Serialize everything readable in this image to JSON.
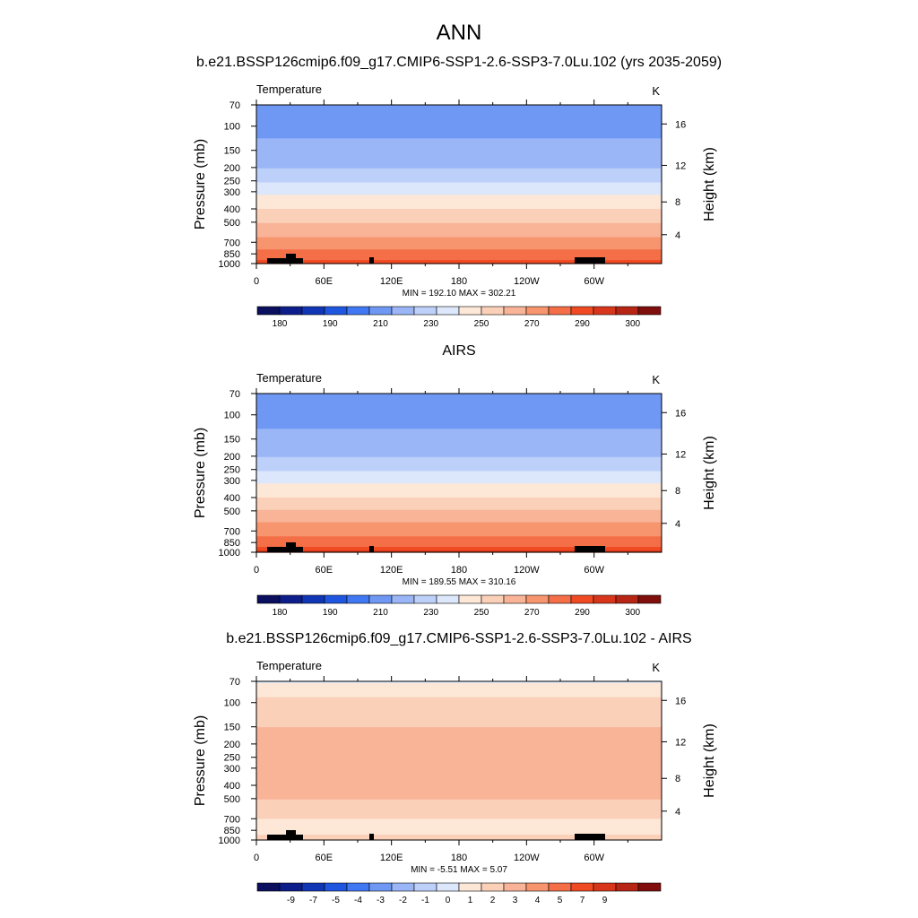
{
  "figure": {
    "title": "ANN",
    "colors": {
      "absolute": [
        "#0a0f5e",
        "#0d1e8a",
        "#1136b5",
        "#1f56e0",
        "#3f78f2",
        "#6f98f4",
        "#9ab6f7",
        "#bdd0f9",
        "#dde7fb",
        "#fde7d7",
        "#fbd0b8",
        "#f9b498",
        "#f7956f",
        "#f46e47",
        "#f04a22",
        "#d8361a",
        "#b72515",
        "#7f0e0c"
      ],
      "difference": [
        "#0a0f5e",
        "#0d1e8a",
        "#1136b5",
        "#1f56e0",
        "#3f78f2",
        "#6f98f4",
        "#9ab6f7",
        "#bdd0f9",
        "#dde7fb",
        "#fde7d7",
        "#fbd0b8",
        "#f9b498",
        "#f7956f",
        "#f46e47",
        "#f04a22",
        "#d8361a",
        "#b72515",
        "#7f0e0c"
      ],
      "land": "#000000"
    }
  },
  "chart_data": [
    {
      "type": "heatmap",
      "title": "b.e21.BSSP126cmip6.f09_g17.CMIP6-SSP1-2.6-SSP3-7.0Lu.102 (yrs 2035-2059)",
      "variable": "Temperature",
      "units": "K",
      "xlabel": "",
      "ylabel": "Pressure (mb)",
      "y2label": "Height (km)",
      "x_ticks": [
        "0",
        "60E",
        "120E",
        "180",
        "120W",
        "60W"
      ],
      "y_ticks": [
        "70",
        "100",
        "150",
        "200",
        "250",
        "300",
        "400",
        "500",
        "700",
        "850",
        "1000"
      ],
      "y2_ticks": [
        "16",
        "12",
        "8",
        "4"
      ],
      "minmax": "MIN = 192.10  MAX = 302.21",
      "colorbar_labels": [
        "180",
        "190",
        "210",
        "230",
        "250",
        "270",
        "290",
        "300"
      ],
      "colorbar_levels": [
        175,
        180,
        185,
        190,
        200,
        210,
        220,
        230,
        240,
        250,
        260,
        270,
        280,
        290,
        295,
        300,
        305
      ],
      "profile": [
        [
          70,
          205
        ],
        [
          100,
          208
        ],
        [
          150,
          212
        ],
        [
          200,
          220
        ],
        [
          250,
          228
        ],
        [
          300,
          238
        ],
        [
          400,
          250
        ],
        [
          500,
          260
        ],
        [
          700,
          274
        ],
        [
          850,
          284
        ],
        [
          1000,
          293
        ]
      ],
      "min": 192.1,
      "max": 302.21
    },
    {
      "type": "heatmap",
      "title": "AIRS",
      "variable": "Temperature",
      "units": "K",
      "xlabel": "",
      "ylabel": "Pressure (mb)",
      "y2label": "Height (km)",
      "x_ticks": [
        "0",
        "60E",
        "120E",
        "180",
        "120W",
        "60W"
      ],
      "y_ticks": [
        "70",
        "100",
        "150",
        "200",
        "250",
        "300",
        "400",
        "500",
        "700",
        "850",
        "1000"
      ],
      "y2_ticks": [
        "16",
        "12",
        "8",
        "4"
      ],
      "minmax": "MIN = 189.55  MAX = 310.16",
      "colorbar_labels": [
        "180",
        "190",
        "210",
        "230",
        "250",
        "270",
        "290",
        "300"
      ],
      "colorbar_levels": [
        175,
        180,
        185,
        190,
        200,
        210,
        220,
        230,
        240,
        250,
        260,
        270,
        280,
        290,
        295,
        300,
        305
      ],
      "profile": [
        [
          70,
          205
        ],
        [
          100,
          207
        ],
        [
          150,
          212
        ],
        [
          200,
          220
        ],
        [
          250,
          228
        ],
        [
          300,
          238
        ],
        [
          400,
          250
        ],
        [
          500,
          261
        ],
        [
          700,
          276
        ],
        [
          850,
          286
        ],
        [
          1000,
          296
        ]
      ],
      "min": 189.55,
      "max": 310.16
    },
    {
      "type": "heatmap",
      "title": "b.e21.BSSP126cmip6.f09_g17.CMIP6-SSP1-2.6-SSP3-7.0Lu.102 - AIRS",
      "variable": "Temperature",
      "units": "K",
      "xlabel": "",
      "ylabel": "Pressure (mb)",
      "y2label": "Height (km)",
      "x_ticks": [
        "0",
        "60E",
        "120E",
        "180",
        "120W",
        "60W"
      ],
      "y_ticks": [
        "70",
        "100",
        "150",
        "200",
        "250",
        "300",
        "400",
        "500",
        "700",
        "850",
        "1000"
      ],
      "y2_ticks": [
        "16",
        "12",
        "8",
        "4"
      ],
      "minmax": "MIN =  -5.51  MAX =   5.07",
      "colorbar_labels": [
        "-9",
        "-7",
        "-5",
        "-4",
        "-3",
        "-2",
        "-1",
        "0",
        "1",
        "2",
        "3",
        "4",
        "5",
        "7",
        "9"
      ],
      "colorbar_levels": [
        -10,
        -8,
        -6,
        -4.5,
        -3.5,
        -2.5,
        -1.5,
        -0.5,
        0.5,
        1.5,
        2.5,
        3.5,
        4.5,
        6,
        8,
        10,
        12
      ],
      "profile": [
        [
          70,
          0.3
        ],
        [
          100,
          2.0
        ],
        [
          150,
          2.5
        ],
        [
          200,
          3.0
        ],
        [
          250,
          3.0
        ],
        [
          300,
          3.0
        ],
        [
          400,
          2.8
        ],
        [
          500,
          2.5
        ],
        [
          700,
          1.5
        ],
        [
          850,
          1.0
        ],
        [
          1000,
          2.0
        ]
      ],
      "min": -5.51,
      "max": 5.07
    }
  ]
}
